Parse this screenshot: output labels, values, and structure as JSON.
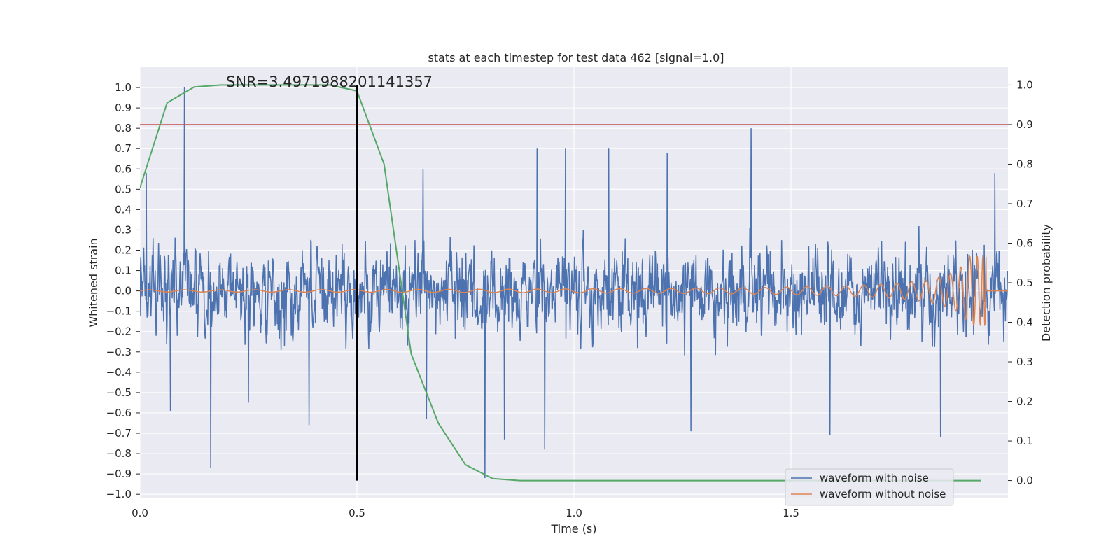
{
  "chart_data": {
    "type": "line",
    "title": "stats at each timestep for test data 462 [signal=1.0]",
    "xlabel": "Time (s)",
    "ylabel": "Whitened strain",
    "y2label": "Detection probability",
    "xlim": [
      0.0,
      2.0
    ],
    "ylim": [
      -1.02,
      1.1
    ],
    "y2lim": [
      -0.045,
      1.045
    ],
    "xticks": [
      "0.0",
      "0.5",
      "1.0",
      "1.5"
    ],
    "yticks": [
      "1.0",
      "0.9",
      "0.8",
      "0.7",
      "0.6",
      "0.5",
      "0.4",
      "0.3",
      "0.2",
      "0.1",
      "0.0",
      "−0.1",
      "−0.2",
      "−0.3",
      "−0.4",
      "−0.5",
      "−0.6",
      "−0.7",
      "−0.8",
      "−0.9",
      "−1.0"
    ],
    "y2ticks": [
      "1.0",
      "0.9",
      "0.8",
      "0.7",
      "0.6",
      "0.5",
      "0.4",
      "0.3",
      "0.2",
      "0.1",
      "0.0"
    ],
    "grid": true,
    "legend_position": "lower-right",
    "annotation": "SNR=3.4971988201141357",
    "series": [
      {
        "name": "waveform with noise",
        "axis": "left",
        "color": "#4c72b0",
        "kind": "noise",
        "sample_rate": 1024,
        "duration": 2.0,
        "spikes": [
          {
            "x": 0.103,
            "y": 1.0
          },
          {
            "x": 1.408,
            "y": 0.8
          },
          {
            "x": 0.163,
            "y": -0.87
          },
          {
            "x": 0.915,
            "y": 0.7
          },
          {
            "x": 0.98,
            "y": 0.7
          },
          {
            "x": 1.08,
            "y": 0.7
          },
          {
            "x": 1.215,
            "y": 0.68
          },
          {
            "x": 0.652,
            "y": 0.6
          },
          {
            "x": 0.795,
            "y": -0.92
          },
          {
            "x": 0.84,
            "y": -0.73
          },
          {
            "x": 0.933,
            "y": -0.78
          },
          {
            "x": 0.66,
            "y": -0.63
          },
          {
            "x": 0.39,
            "y": -0.66
          },
          {
            "x": 1.59,
            "y": -0.71
          },
          {
            "x": 1.845,
            "y": -0.72
          },
          {
            "x": 1.27,
            "y": -0.69
          },
          {
            "x": 1.97,
            "y": 0.58
          },
          {
            "x": 0.015,
            "y": 0.58
          },
          {
            "x": 0.07,
            "y": -0.59
          },
          {
            "x": 0.25,
            "y": -0.55
          }
        ]
      },
      {
        "name": "waveform without noise",
        "axis": "left",
        "color": "#dd8452",
        "kind": "chirp",
        "f0": 12,
        "tc": 1.95,
        "a0": 0.005,
        "amax": 0.17
      },
      {
        "name": "",
        "axis": "right",
        "color": "#55a868",
        "x": [
          0.0,
          0.0625,
          0.125,
          0.1875,
          0.25,
          0.3125,
          0.375,
          0.4375,
          0.5,
          0.5625,
          0.625,
          0.6875,
          0.75,
          0.8125,
          0.875,
          0.9375,
          1.0,
          1.25,
          1.5,
          1.75,
          1.9375
        ],
        "y": [
          0.74,
          0.955,
          0.995,
          1.0,
          1.0,
          1.0,
          1.0,
          1.0,
          0.985,
          0.8,
          0.32,
          0.145,
          0.04,
          0.005,
          0.0,
          0.0,
          0.0,
          0.0,
          0.0,
          0.0,
          0.0
        ]
      }
    ],
    "threshold_line": {
      "axis": "right",
      "value": 0.9,
      "color": "#c44e52"
    },
    "marker_line": {
      "x": 0.5,
      "y_from": 0.0,
      "y_to": 1.0,
      "axis": "right",
      "color": "#000000"
    }
  }
}
